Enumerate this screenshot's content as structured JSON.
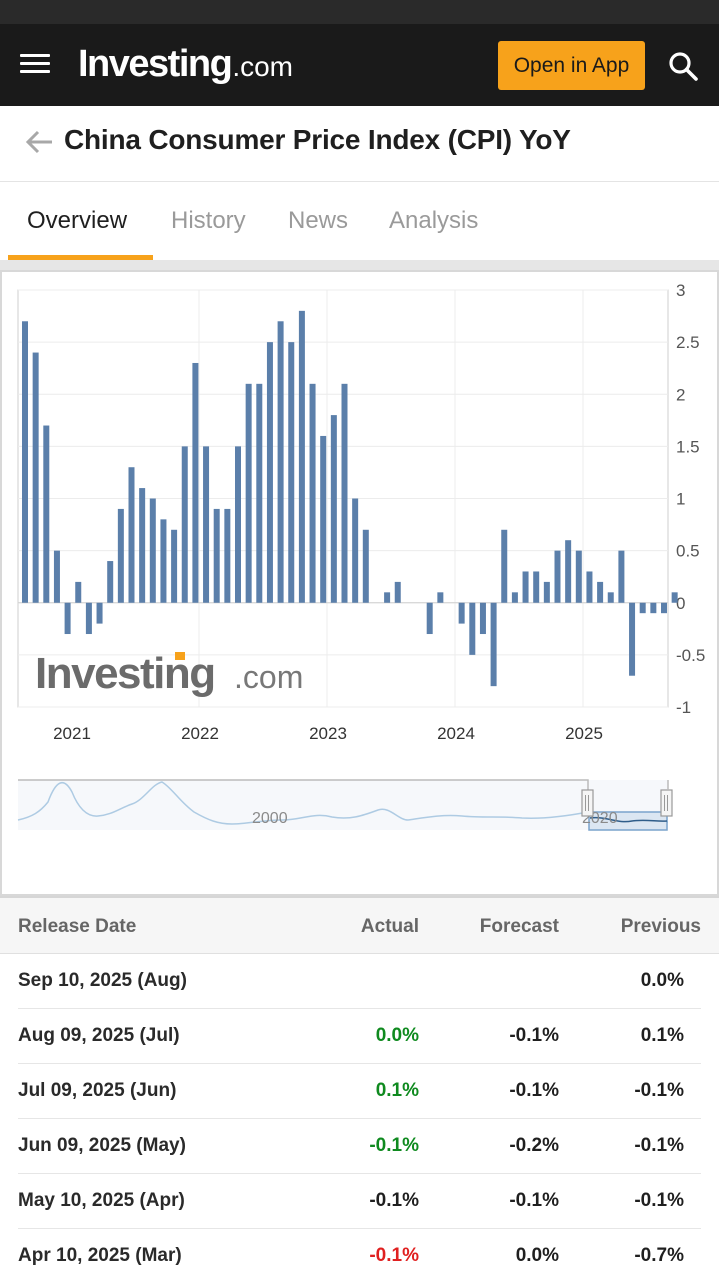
{
  "header": {
    "logo_main": "Investing",
    "logo_com": ".com",
    "open_app_label": "Open in App",
    "icons": [
      "menu-icon",
      "search-icon"
    ]
  },
  "page": {
    "title": "China Consumer Price Index (CPI) YoY",
    "back_icon": "back-arrow-icon"
  },
  "tabs": [
    {
      "label": "Overview",
      "active": true
    },
    {
      "label": "History",
      "active": false
    },
    {
      "label": "News",
      "active": false
    },
    {
      "label": "Analysis",
      "active": false
    }
  ],
  "colors": {
    "brand_orange": "#f7a21b",
    "bar_blue": "#5b7faa",
    "positive_green": "#0f8a1f",
    "negative_red": "#e02020"
  },
  "chart_data": {
    "type": "bar",
    "x_tick_labels": [
      "2021",
      "2022",
      "2023",
      "2024",
      "2025"
    ],
    "y_tick_labels": [
      "3",
      "2.5",
      "2",
      "1.5",
      "1",
      "0.5",
      "0",
      "-0.5",
      "-1"
    ],
    "ylim": [
      -1,
      3
    ],
    "y_axis_side": "right",
    "grid": true,
    "watermark": "Investing.com",
    "series": [
      {
        "values": [
          2.7,
          2.4,
          1.7,
          0.5,
          -0.3,
          0.2,
          -0.3,
          -0.2,
          0.4,
          0.9,
          1.3,
          1.1,
          1.0,
          0.8,
          0.7,
          1.5,
          2.3,
          1.5,
          0.9,
          0.9,
          1.5,
          2.1,
          2.1,
          2.5,
          2.7,
          2.5,
          2.8,
          2.1,
          1.6,
          1.8,
          2.1,
          1.0,
          0.7,
          0.0,
          0.1,
          0.2,
          0.0,
          0.0,
          -0.3,
          0.1,
          0.0,
          -0.2,
          -0.5,
          -0.3,
          -0.8,
          0.7,
          0.1,
          0.3,
          0.3,
          0.2,
          0.5,
          0.6,
          0.5,
          0.3,
          0.2,
          0.1,
          0.5,
          -0.7,
          -0.1,
          -0.1,
          -0.1,
          0.1
        ]
      }
    ],
    "navigator": {
      "labels": [
        "2000",
        "2020"
      ]
    }
  },
  "table": {
    "headers": {
      "date": "Release Date",
      "actual": "Actual",
      "forecast": "Forecast",
      "previous": "Previous"
    },
    "rows": [
      {
        "date": "Sep 10, 2025 (Aug)",
        "actual": "",
        "forecast": "",
        "previous": "0.0%",
        "actual_color": "black"
      },
      {
        "date": "Aug 09, 2025 (Jul)",
        "actual": "0.0%",
        "forecast": "-0.1%",
        "previous": "0.1%",
        "actual_color": "green"
      },
      {
        "date": "Jul 09, 2025 (Jun)",
        "actual": "0.1%",
        "forecast": "-0.1%",
        "previous": "-0.1%",
        "actual_color": "green"
      },
      {
        "date": "Jun 09, 2025 (May)",
        "actual": "-0.1%",
        "forecast": "-0.2%",
        "previous": "-0.1%",
        "actual_color": "green"
      },
      {
        "date": "May 10, 2025 (Apr)",
        "actual": "-0.1%",
        "forecast": "-0.1%",
        "previous": "-0.1%",
        "actual_color": "black"
      },
      {
        "date": "Apr 10, 2025 (Mar)",
        "actual": "-0.1%",
        "forecast": "0.0%",
        "previous": "-0.7%",
        "actual_color": "red"
      }
    ]
  }
}
